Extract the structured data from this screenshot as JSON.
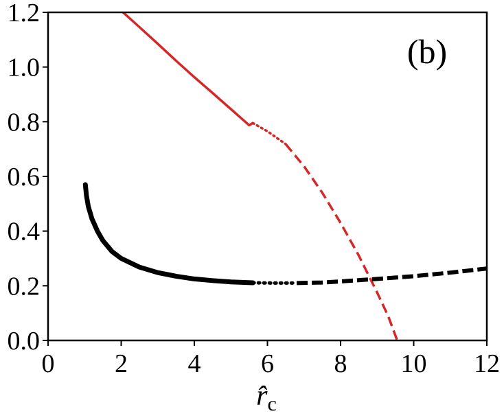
{
  "chart_data": {
    "type": "line",
    "panel_label": "(b)",
    "xlabel": "r̂",
    "xlabel_subscript": "c",
    "ylabel": "",
    "xlim": [
      0,
      12
    ],
    "ylim": [
      0,
      1.2
    ],
    "xticks": [
      0,
      2,
      4,
      6,
      8,
      10,
      12
    ],
    "yticks": [
      0.0,
      0.2,
      0.4,
      0.6,
      0.8,
      1.0,
      1.2
    ],
    "xtick_labels": [
      "0",
      "2",
      "4",
      "6",
      "8",
      "10",
      "12"
    ],
    "ytick_labels": [
      "0.0",
      "0.2",
      "0.4",
      "0.6",
      "0.8",
      "1.0",
      "1.2"
    ],
    "grid": false,
    "series": [
      {
        "color": "#d62728",
        "segments": [
          {
            "style": "solid",
            "points": [
              [
                2.05,
                1.2
              ],
              [
                2.5,
                1.146
              ],
              [
                3.0,
                1.085
              ],
              [
                3.5,
                1.023
              ],
              [
                4.0,
                0.963
              ],
              [
                4.5,
                0.905
              ],
              [
                5.0,
                0.846
              ],
              [
                5.5,
                0.787
              ],
              [
                5.6,
                0.795
              ]
            ]
          },
          {
            "style": "dotted",
            "points": [
              [
                5.6,
                0.795
              ],
              [
                6.0,
                0.765
              ],
              [
                6.5,
                0.718
              ]
            ]
          },
          {
            "style": "dashed",
            "points": [
              [
                6.5,
                0.718
              ],
              [
                7.0,
                0.637
              ],
              [
                7.5,
                0.54
              ],
              [
                8.0,
                0.43
              ],
              [
                8.5,
                0.31
              ],
              [
                9.0,
                0.175
              ],
              [
                9.3,
                0.09
              ],
              [
                9.55,
                0.0
              ]
            ]
          }
        ]
      },
      {
        "color": "#000000",
        "segments": [
          {
            "style": "solid",
            "points": [
              [
                1.02,
                0.57
              ],
              [
                1.05,
                0.53
              ],
              [
                1.1,
                0.49
              ],
              [
                1.2,
                0.445
              ],
              [
                1.35,
                0.4
              ],
              [
                1.5,
                0.365
              ],
              [
                1.75,
                0.325
              ],
              [
                2.0,
                0.3
              ],
              [
                2.5,
                0.268
              ],
              [
                3.0,
                0.248
              ],
              [
                3.5,
                0.235
              ],
              [
                4.0,
                0.225
              ],
              [
                4.5,
                0.219
              ],
              [
                5.0,
                0.214
              ],
              [
                5.6,
                0.211
              ]
            ]
          },
          {
            "style": "dotted",
            "points": [
              [
                5.6,
                0.211
              ],
              [
                6.2,
                0.21
              ],
              [
                6.8,
                0.21
              ]
            ]
          },
          {
            "style": "dashed",
            "points": [
              [
                6.8,
                0.21
              ],
              [
                7.5,
                0.212
              ],
              [
                8.0,
                0.216
              ],
              [
                9.0,
                0.225
              ],
              [
                10.0,
                0.235
              ],
              [
                11.0,
                0.248
              ],
              [
                12.0,
                0.263
              ]
            ]
          }
        ]
      }
    ]
  }
}
